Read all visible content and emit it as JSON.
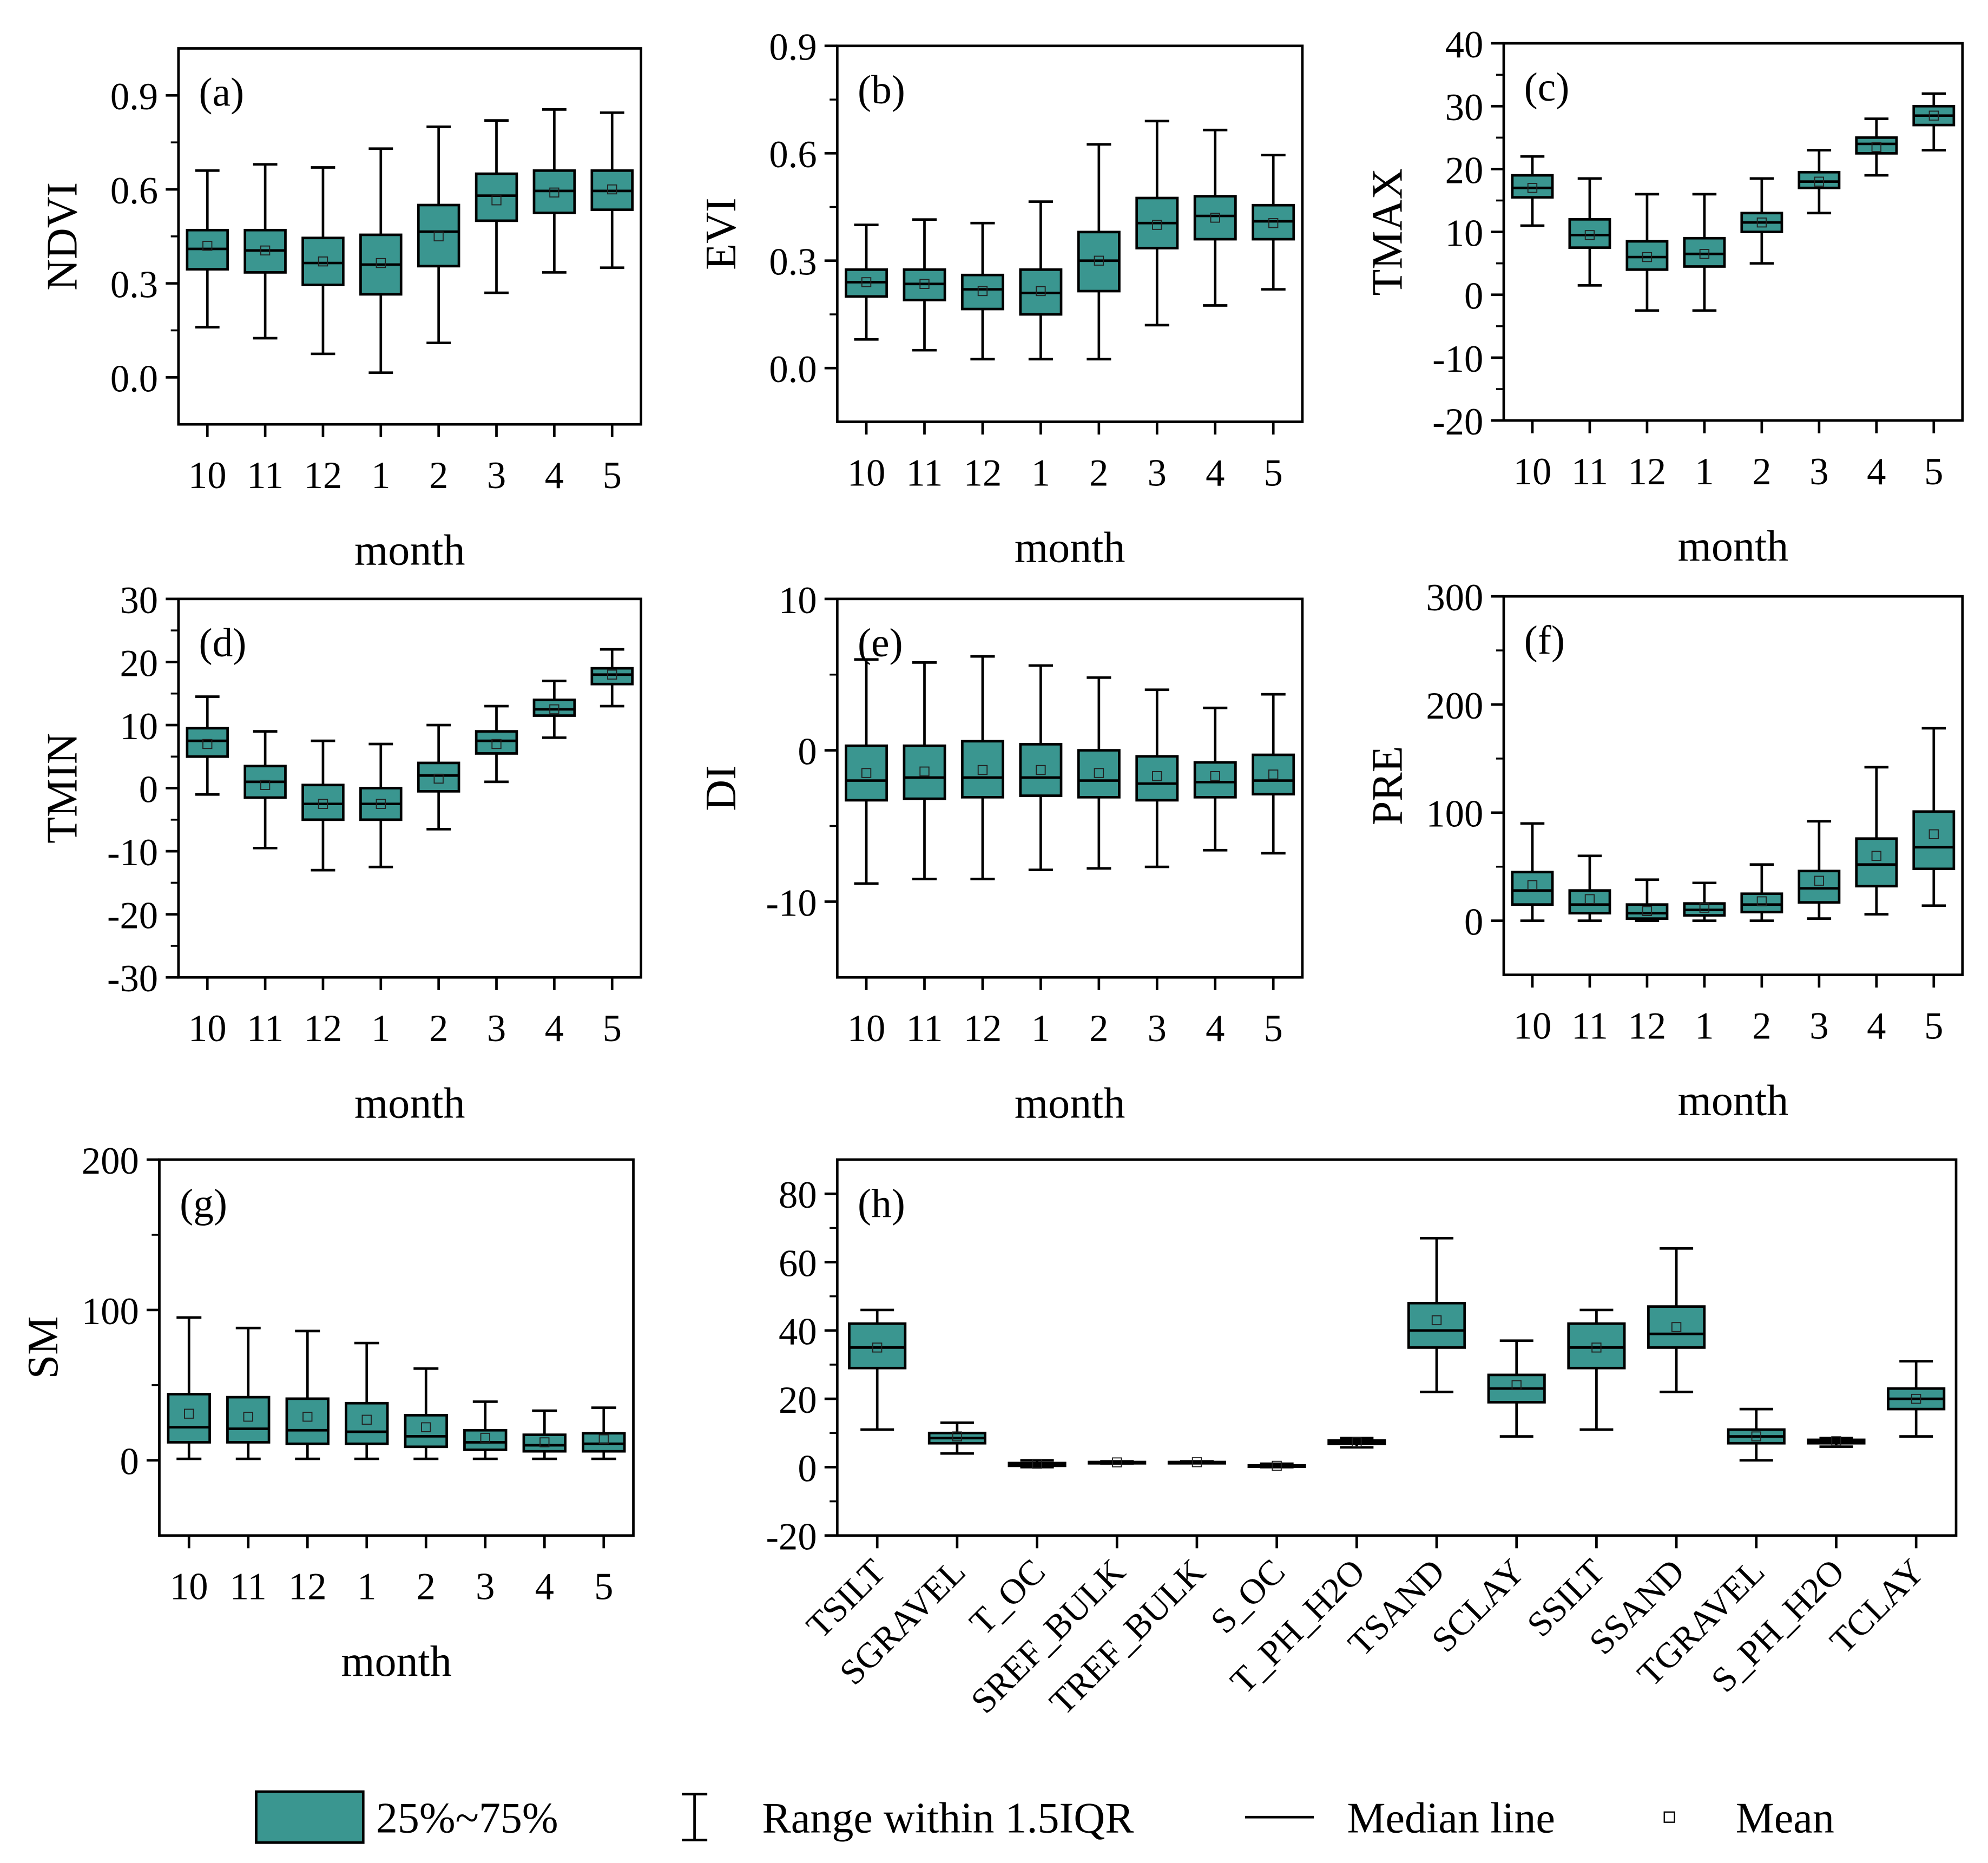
{
  "chart_data": [
    {
      "type": "box",
      "title": "(a)",
      "ylabel": "NDVI",
      "xlabel": "month",
      "color": "#3a9690",
      "categories": [
        "10",
        "11",
        "12",
        "1",
        "2",
        "3",
        "4",
        "5"
      ],
      "ylim": [
        -0.15,
        1.05
      ],
      "yticks": [
        {
          "value": 0,
          "label": "0.0"
        },
        0.3,
        0.6,
        0.9
      ],
      "boxes": {
        "whislo": [
          0.16,
          0.125,
          0.075,
          0.015,
          0.11,
          0.27,
          0.335,
          0.35
        ],
        "q1": [
          0.345,
          0.335,
          0.295,
          0.265,
          0.355,
          0.5,
          0.525,
          0.535
        ],
        "med": [
          0.41,
          0.405,
          0.365,
          0.36,
          0.465,
          0.58,
          0.595,
          0.595
        ],
        "q3": [
          0.47,
          0.47,
          0.445,
          0.455,
          0.55,
          0.65,
          0.66,
          0.66
        ],
        "whishi": [
          0.66,
          0.68,
          0.67,
          0.73,
          0.8,
          0.82,
          0.855,
          0.845
        ],
        "mean": [
          0.42,
          0.405,
          0.37,
          0.365,
          0.45,
          0.565,
          0.59,
          0.6
        ]
      }
    },
    {
      "type": "box",
      "title": "(b)",
      "ylabel": "EVI",
      "xlabel": "month",
      "color": "#3a9690",
      "categories": [
        "10",
        "11",
        "12",
        "1",
        "2",
        "3",
        "4",
        "5"
      ],
      "ylim": [
        -0.15,
        0.9
      ],
      "yticks": [
        {
          "value": 0,
          "label": "0.0"
        },
        0.3,
        0.6,
        0.9
      ],
      "boxes": {
        "whislo": [
          0.08,
          0.05,
          0.025,
          0.025,
          0.025,
          0.12,
          0.175,
          0.22
        ],
        "q1": [
          0.2,
          0.19,
          0.165,
          0.15,
          0.215,
          0.335,
          0.36,
          0.36
        ],
        "med": [
          0.24,
          0.235,
          0.22,
          0.21,
          0.3,
          0.405,
          0.425,
          0.41
        ],
        "q3": [
          0.275,
          0.275,
          0.26,
          0.275,
          0.38,
          0.475,
          0.48,
          0.455
        ],
        "whishi": [
          0.4,
          0.415,
          0.405,
          0.465,
          0.625,
          0.69,
          0.665,
          0.595
        ],
        "mean": [
          0.24,
          0.235,
          0.215,
          0.215,
          0.3,
          0.4,
          0.42,
          0.405
        ]
      }
    },
    {
      "type": "box",
      "title": "(c)",
      "ylabel": "TMAX",
      "xlabel": "month",
      "color": "#3a9690",
      "categories": [
        "10",
        "11",
        "12",
        "1",
        "2",
        "3",
        "4",
        "5"
      ],
      "ylim": [
        -20,
        40
      ],
      "yticks": [
        -20,
        -10,
        0,
        10,
        20,
        30,
        40
      ],
      "boxes": {
        "whislo": [
          11,
          1.5,
          -2.5,
          -2.5,
          5,
          13,
          19,
          23
        ],
        "q1": [
          15.5,
          7.5,
          4,
          4.5,
          10,
          17,
          22.5,
          27
        ],
        "med": [
          17,
          9.5,
          6,
          6.5,
          11.5,
          18,
          24,
          28.5
        ],
        "q3": [
          19,
          12,
          8.5,
          9,
          13,
          19.5,
          25,
          30
        ],
        "whishi": [
          22,
          18.5,
          16,
          16,
          18.5,
          23,
          28,
          32
        ],
        "mean": [
          17,
          9.5,
          6,
          6.5,
          11.5,
          18,
          23.5,
          28.5
        ]
      }
    },
    {
      "type": "box",
      "title": "(d)",
      "ylabel": "TMIN",
      "xlabel": "month",
      "color": "#3a9690",
      "categories": [
        "10",
        "11",
        "12",
        "1",
        "2",
        "3",
        "4",
        "5"
      ],
      "ylim": [
        -30,
        30
      ],
      "yticks": [
        -30,
        -20,
        -10,
        0,
        10,
        20,
        30
      ],
      "boxes": {
        "whislo": [
          -1,
          -9.5,
          -13,
          -12.5,
          -6.5,
          1,
          8,
          13
        ],
        "q1": [
          5,
          -1.5,
          -5,
          -5,
          -0.5,
          5.5,
          11.5,
          16.5
        ],
        "med": [
          7.5,
          1,
          -2.5,
          -2.5,
          2,
          7.5,
          12.5,
          18
        ],
        "q3": [
          9.5,
          3.5,
          0.5,
          0,
          4,
          9,
          14,
          19
        ],
        "whishi": [
          14.5,
          9,
          7.5,
          7,
          10,
          13,
          17,
          22
        ],
        "mean": [
          7,
          0.5,
          -2.5,
          -2.5,
          1.5,
          7,
          12.5,
          18
        ]
      }
    },
    {
      "type": "box",
      "title": "(e)",
      "ylabel": "DI",
      "xlabel": "month",
      "color": "#3a9690",
      "categories": [
        "10",
        "11",
        "12",
        "1",
        "2",
        "3",
        "4",
        "5"
      ],
      "ylim": [
        -15,
        10
      ],
      "yticks": [
        -10,
        0,
        10
      ],
      "boxes": {
        "whislo": [
          -8.8,
          -8.5,
          -8.5,
          -7.9,
          -7.8,
          -7.7,
          -6.6,
          -6.8
        ],
        "q1": [
          -3.3,
          -3.2,
          -3.1,
          -3,
          -3.1,
          -3.3,
          -3.1,
          -2.9
        ],
        "med": [
          -2,
          -1.8,
          -1.8,
          -1.8,
          -2,
          -2.2,
          -2.1,
          -2
        ],
        "q3": [
          0.3,
          0.3,
          0.6,
          0.4,
          0,
          -0.4,
          -0.8,
          -0.3
        ],
        "whishi": [
          6,
          5.8,
          6.2,
          5.6,
          4.8,
          4,
          2.8,
          3.7
        ],
        "mean": [
          -1.5,
          -1.4,
          -1.3,
          -1.3,
          -1.5,
          -1.7,
          -1.7,
          -1.6
        ]
      }
    },
    {
      "type": "box",
      "title": "(f)",
      "ylabel": "PRE",
      "xlabel": "month",
      "color": "#3a9690",
      "categories": [
        "10",
        "11",
        "12",
        "1",
        "2",
        "3",
        "4",
        "5"
      ],
      "ylim": [
        -50,
        300
      ],
      "yticks": [
        0,
        100,
        200,
        300
      ],
      "boxes": {
        "whislo": [
          0,
          0,
          0,
          0,
          0,
          2,
          6,
          14
        ],
        "q1": [
          15,
          7,
          2,
          5,
          8,
          17,
          32,
          48
        ],
        "med": [
          28,
          15,
          7,
          10,
          15,
          30,
          52,
          68
        ],
        "q3": [
          45,
          28,
          15,
          16,
          25,
          46,
          76,
          101
        ],
        "whishi": [
          90,
          60,
          38,
          35,
          52,
          92,
          142,
          178
        ],
        "mean": [
          33,
          20,
          9,
          12,
          18,
          37,
          60,
          80
        ]
      }
    },
    {
      "type": "box",
      "title": "(g)",
      "ylabel": "SM",
      "xlabel": "month",
      "color": "#3a9690",
      "categories": [
        "10",
        "11",
        "12",
        "1",
        "2",
        "3",
        "4",
        "5"
      ],
      "ylim": [
        -50,
        200
      ],
      "yticks": [
        0,
        100,
        200
      ],
      "boxes": {
        "whislo": [
          1,
          1,
          1,
          1,
          1,
          1,
          1,
          1
        ],
        "q1": [
          12,
          12,
          11,
          11,
          9,
          7,
          6,
          6
        ],
        "med": [
          22,
          21,
          20,
          19,
          16,
          12,
          10,
          11
        ],
        "q3": [
          44,
          42,
          41,
          38,
          30,
          20,
          17,
          18
        ],
        "whishi": [
          95,
          88,
          86,
          78,
          61,
          39,
          33,
          35
        ],
        "mean": [
          31,
          29,
          29,
          27,
          22,
          15,
          12,
          14
        ]
      }
    },
    {
      "type": "box",
      "title": "(h)",
      "color": "#3a9690",
      "categories": [
        "TSILT",
        "SGRAVEL",
        "T_OC",
        "SREF_BULK",
        "TREF_BULK",
        "S_OC",
        "T_PH_H2O",
        "TSAND",
        "SCLAY",
        "SSILT",
        "SSAND",
        "TGRAVEL",
        "S_PH_H2O",
        "TCLAY"
      ],
      "ylim": [
        -20,
        90
      ],
      "yticks": [
        -20,
        0,
        20,
        40,
        60,
        80
      ],
      "boxes": {
        "whislo": [
          11,
          4,
          0,
          1.1,
          1.2,
          0,
          5.8,
          22,
          9,
          11,
          22,
          2,
          6,
          9
        ],
        "q1": [
          29,
          7,
          0.4,
          1.3,
          1.35,
          0.2,
          6.8,
          35,
          19,
          29,
          35,
          7,
          7,
          17
        ],
        "med": [
          35,
          8.5,
          0.8,
          1.4,
          1.45,
          0.3,
          7.3,
          40,
          23,
          35,
          39,
          9,
          7.6,
          20
        ],
        "q3": [
          42,
          10,
          1.2,
          1.5,
          1.5,
          0.5,
          7.8,
          48,
          27,
          42,
          47,
          11,
          8,
          23
        ],
        "whishi": [
          46,
          13,
          2,
          1.7,
          1.7,
          1,
          8.5,
          67,
          37,
          46,
          64,
          17,
          8.5,
          31
        ],
        "mean": [
          35,
          9,
          1,
          1.4,
          1.45,
          0.4,
          7.3,
          43,
          24,
          35,
          41,
          9,
          7.6,
          20
        ]
      }
    }
  ],
  "legend": {
    "box": "25%~75%",
    "whisker": "Range within 1.5IQR",
    "median": "Median line",
    "mean": "Mean"
  }
}
